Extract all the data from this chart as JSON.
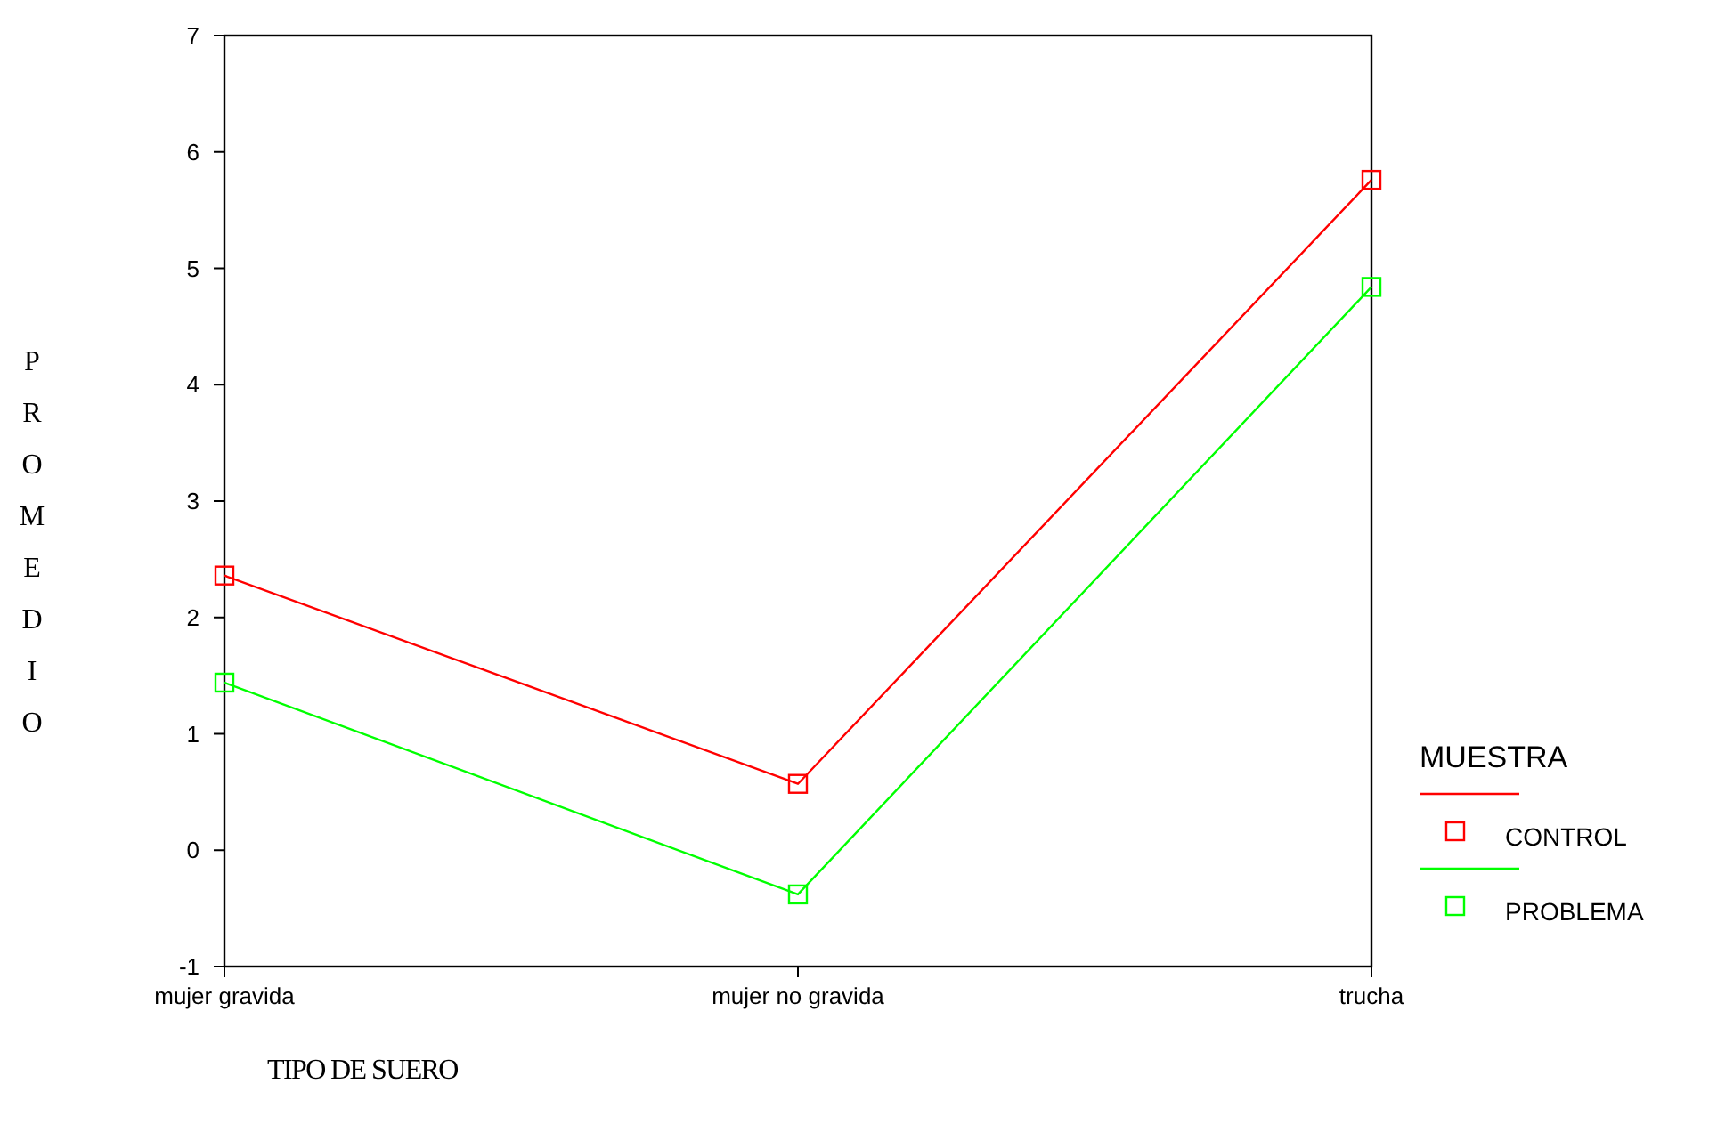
{
  "chart_data": {
    "type": "line",
    "xlabel": "TIPO DE SUERO",
    "ylabel": "PROMEDIO",
    "legend_title": "MUESTRA",
    "categories": [
      "mujer gravida",
      "mujer no gravida",
      "trucha"
    ],
    "series": [
      {
        "name": "CONTROL",
        "color": "#ff0000",
        "values": [
          2.36,
          0.57,
          5.76
        ]
      },
      {
        "name": "PROBLEMA",
        "color": "#00ff00",
        "values": [
          1.44,
          -0.38,
          4.84
        ]
      }
    ],
    "ylim": [
      -1,
      7
    ],
    "yticks": [
      -1,
      0,
      1,
      2,
      3,
      4,
      5,
      6,
      7
    ],
    "grid": false,
    "legend": "right",
    "marker": "square",
    "line_style": "solid"
  }
}
